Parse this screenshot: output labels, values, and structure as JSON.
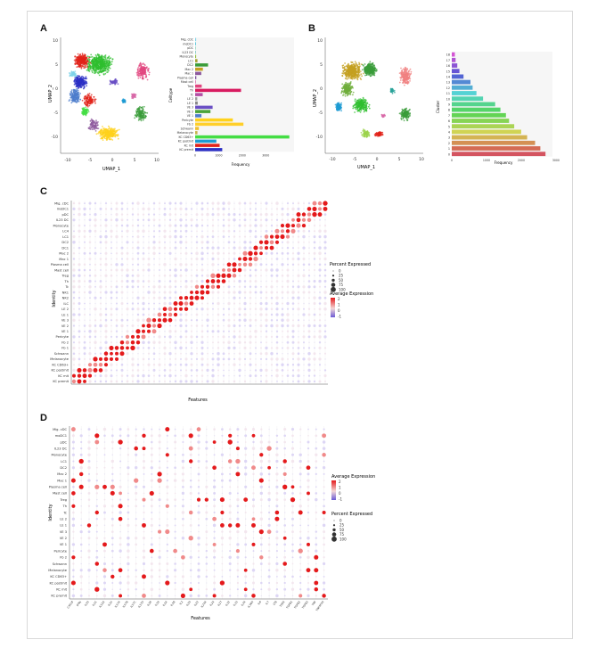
{
  "figure": {
    "panels": {
      "A": "A",
      "B": "B",
      "C": "C",
      "D": "D"
    },
    "panelA": {
      "umap_xlabel": "UMAP_1",
      "umap_ylabel": "UMAP_2",
      "umap_xticks": [
        "-10",
        "-5",
        "0",
        "5",
        "10"
      ],
      "umap_yticks": [
        "10",
        "5",
        "0",
        "-5",
        "-10"
      ],
      "bar_ylabel": "Celltype",
      "bar_xlabel": "Frequency",
      "bar_xticks": [
        "0",
        "1000",
        "2000",
        "3000"
      ]
    },
    "panelB": {
      "umap_xlabel": "UMAP_1",
      "umap_ylabel": "UMAP_2",
      "umap_xticks": [
        "-10",
        "-5",
        "0",
        "5",
        "10"
      ],
      "umap_yticks": [
        "10",
        "5",
        "0",
        "-5",
        "-10"
      ],
      "bar_ylabel": "Cluster",
      "bar_xlabel": "Frequency",
      "bar_xticks": [
        "0",
        "1000",
        "2000",
        "3000"
      ]
    },
    "panelC": {
      "ylabel": "Identity",
      "xlabel": "Features",
      "legend_pct_title": "Percent Expressed",
      "legend_pct_values": [
        "0",
        "25",
        "50",
        "75",
        "100"
      ],
      "legend_avg_title": "Average Expression",
      "legend_avg_values": [
        "2",
        "1",
        "0",
        "-1"
      ]
    },
    "panelD": {
      "ylabel": "Identity",
      "xlabel": "Features",
      "legend_avg_title": "Average Expression",
      "legend_avg_values": [
        "2",
        "1",
        "0",
        "-1"
      ],
      "legend_pct_title": "Percent Expressed",
      "legend_pct_values": [
        "0",
        "25",
        "50",
        "75",
        "100"
      ],
      "features": [
        "CXCL8",
        "IFNγ",
        "IL10",
        "IL11",
        "IL12A",
        "IL15",
        "IL17A",
        "IL17B",
        "IL17C",
        "IL17D",
        "IL18",
        "IL19",
        "IL1A",
        "IL1B",
        "IL2",
        "IL20",
        "IL22",
        "IL23A",
        "IL24",
        "IL27",
        "IL32",
        "IL33",
        "IL34",
        "IL36G",
        "IL6",
        "IL7",
        "LTB",
        "TGFA",
        "TGFB1",
        "TGFB2",
        "TGFB3",
        "TNF",
        "TNFSF10"
      ]
    },
    "colors": {
      "high": "#e41a1c",
      "mid": "#f4d7d7",
      "low": "#6b5bd6"
    }
  },
  "chart_data": [
    {
      "type": "bar",
      "panel": "A",
      "orientation": "horizontal",
      "categories": [
        "Mig. cDC",
        "moDC1",
        "pDC",
        "IL23 DC",
        "Monocyte",
        "LC1",
        "DC2",
        "Mac 2",
        "Mac 1",
        "Plasma cell",
        "Mast cell",
        "Treg",
        "Th",
        "Tc",
        "LE 2",
        "LE 1",
        "VE 3",
        "VE 2",
        "VE 1",
        "Pericyte",
        "Fb 2",
        "Schwann",
        "Melanocyte",
        "KC CD63+",
        "KC postmit",
        "KC mit",
        "KC premit"
      ],
      "values": [
        40,
        30,
        20,
        20,
        40,
        100,
        550,
        330,
        260,
        50,
        30,
        280,
        1950,
        320,
        90,
        110,
        740,
        650,
        270,
        1600,
        2050,
        160,
        100,
        4000,
        900,
        1040,
        1150
      ],
      "xlabel": "Frequency",
      "ylabel": "Celltype",
      "xlim": [
        0,
        4200
      ],
      "series_colors": [
        "#7fd3e8",
        "#3fbcd6",
        "#54c5a0",
        "#2aa39a",
        "#8fbf3b",
        "#a4a02c",
        "#3a9c3a",
        "#c4a020",
        "#8d5a9e",
        "#7c4fa0",
        "#d86aa8",
        "#e1457f",
        "#d81b60",
        "#b44ea5",
        "#9e9e9e",
        "#8a8a8a",
        "#6a4fc4",
        "#4aa33a",
        "#4e7dcc",
        "#ffd21c",
        "#ffcf2a",
        "#f0c030",
        "#c8b44c",
        "#44dd44",
        "#1d9bd3",
        "#e2231a",
        "#2b2fc4"
      ]
    },
    {
      "type": "bar",
      "panel": "B",
      "orientation": "horizontal",
      "categories": [
        "18",
        "17",
        "16",
        "15",
        "14",
        "13",
        "12",
        "11",
        "10",
        "9",
        "8",
        "7",
        "6",
        "5",
        "4",
        "3",
        "2",
        "1",
        "0"
      ],
      "values": [
        90,
        110,
        160,
        220,
        340,
        540,
        600,
        710,
        900,
        1250,
        1400,
        1560,
        1650,
        1800,
        2000,
        2170,
        2400,
        2550,
        2700
      ],
      "xlabel": "Frequency",
      "ylabel": "Cluster",
      "xlim": [
        0,
        2900
      ]
    },
    {
      "type": "scatter",
      "panel": "C",
      "subtype": "dotplot",
      "identities": [
        "Mig. cDC",
        "moDC1",
        "pDC",
        "IL23 DC",
        "Monocyte",
        "LC4",
        "LC1",
        "DC2",
        "DC1",
        "Mac 2",
        "Mac 1",
        "Plasma cell",
        "Mast cell",
        "Treg",
        "Th",
        "Tc",
        "NK1",
        "NK2",
        "ILC",
        "LE 2",
        "LE 1",
        "VE 3",
        "VE 2",
        "VE 1",
        "Pericyte",
        "Fb 2",
        "Fb 1",
        "Schwann",
        "Melanocyte",
        "KC CD63+",
        "KC postmit",
        "KC mit",
        "KC premit"
      ],
      "xlabel": "Features",
      "ylabel": "Identity"
    },
    {
      "type": "scatter",
      "panel": "D",
      "subtype": "dotplot",
      "identities": [
        "Mig. cDC",
        "moDC1",
        "pDC",
        "IL23 DC",
        "Monocyte",
        "LC1",
        "DC2",
        "Mac 2",
        "Mac 1",
        "Plasma cell",
        "Mast cell",
        "Treg",
        "Th",
        "Tc",
        "LE 2",
        "LE 1",
        "VE 3",
        "VE 2",
        "VE 1",
        "Pericyte",
        "Fb 2",
        "Schwann",
        "Melanocyte",
        "KC CD63+",
        "KC postmit",
        "KC mit",
        "KC premit"
      ],
      "xlabel": "Features",
      "ylabel": "Identity"
    }
  ]
}
